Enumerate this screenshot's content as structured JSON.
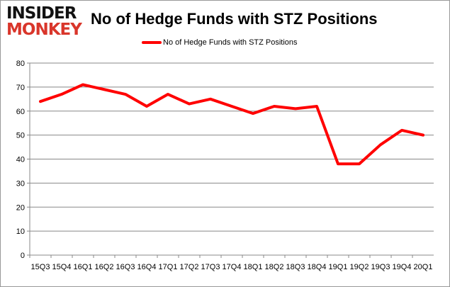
{
  "logo": {
    "line1": "INSIDER",
    "line2": "MONKEY"
  },
  "chart_data": {
    "type": "line",
    "title": "No of Hedge Funds with STZ Positions",
    "categories": [
      "15Q3",
      "15Q4",
      "16Q1",
      "16Q2",
      "16Q3",
      "16Q4",
      "17Q1",
      "17Q2",
      "17Q3",
      "17Q4",
      "18Q1",
      "18Q2",
      "18Q3",
      "18Q4",
      "19Q1",
      "19Q2",
      "19Q3",
      "19Q4",
      "20Q1"
    ],
    "series": [
      {
        "name": "No of Hedge Funds with STZ Positions",
        "color": "#ff0000",
        "values": [
          64,
          67,
          71,
          69,
          67,
          62,
          67,
          63,
          65,
          62,
          59,
          62,
          61,
          62,
          38,
          38,
          46,
          52,
          50
        ]
      }
    ],
    "ylim": [
      0,
      80
    ],
    "yticks": [
      0,
      10,
      20,
      30,
      40,
      50,
      60,
      70,
      80
    ],
    "grid": true,
    "legend": "top"
  }
}
